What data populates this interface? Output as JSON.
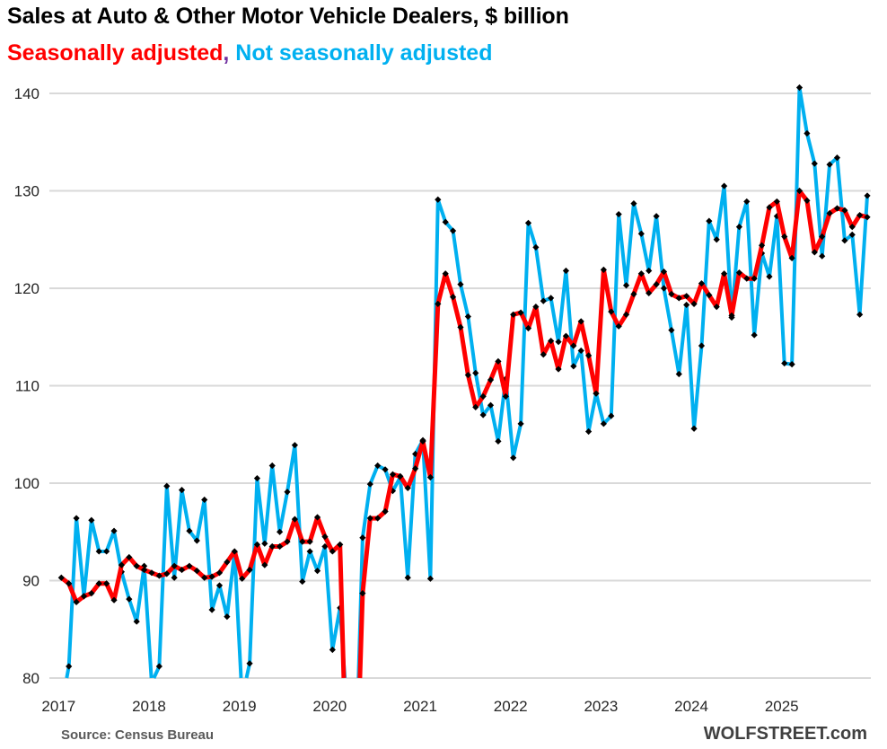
{
  "chart_data": {
    "type": "line",
    "title": "Sales at Auto & Other Motor Vehicle Dealers, $ billion",
    "subtitle_parts": [
      {
        "text": "Seasonally adjusted",
        "color": "#ff0000"
      },
      {
        "text": ",",
        "color": "#7030a0"
      },
      {
        "text": " Not seasonally adjusted",
        "color": "#00b0f0"
      }
    ],
    "xlabel": "",
    "ylabel": "",
    "ylim": [
      80,
      143
    ],
    "y_ticks": [
      80,
      90,
      100,
      110,
      120,
      130,
      140
    ],
    "x_tick_labels": [
      "2017",
      "2018",
      "2019",
      "2020",
      "2021",
      "2022",
      "2023",
      "2024",
      "2025"
    ],
    "grid": "horizontal",
    "markers": "black diamonds",
    "x": [
      "2017-01",
      "2017-02",
      "2017-03",
      "2017-04",
      "2017-05",
      "2017-06",
      "2017-07",
      "2017-08",
      "2017-09",
      "2017-10",
      "2017-11",
      "2017-12",
      "2018-01",
      "2018-02",
      "2018-03",
      "2018-04",
      "2018-05",
      "2018-06",
      "2018-07",
      "2018-08",
      "2018-09",
      "2018-10",
      "2018-11",
      "2018-12",
      "2019-01",
      "2019-02",
      "2019-03",
      "2019-04",
      "2019-05",
      "2019-06",
      "2019-07",
      "2019-08",
      "2019-09",
      "2019-10",
      "2019-11",
      "2019-12",
      "2020-01",
      "2020-02",
      "2020-03",
      "2020-04",
      "2020-05",
      "2020-06",
      "2020-07",
      "2020-08",
      "2020-09",
      "2020-10",
      "2020-11",
      "2020-12",
      "2021-01",
      "2021-02",
      "2021-03",
      "2021-04",
      "2021-05",
      "2021-06",
      "2021-07",
      "2021-08",
      "2021-09",
      "2021-10",
      "2021-11",
      "2021-12",
      "2022-01",
      "2022-02",
      "2022-03",
      "2022-04",
      "2022-05",
      "2022-06",
      "2022-07",
      "2022-08",
      "2022-09",
      "2022-10",
      "2022-11",
      "2022-12",
      "2023-01",
      "2023-02",
      "2023-03",
      "2023-04",
      "2023-05",
      "2023-06",
      "2023-07",
      "2023-08",
      "2023-09",
      "2023-10",
      "2023-11",
      "2023-12",
      "2024-01",
      "2024-02",
      "2024-03",
      "2024-04",
      "2024-05",
      "2024-06",
      "2024-07",
      "2024-08",
      "2024-09",
      "2024-10",
      "2024-11",
      "2024-12",
      "2025-01",
      "2025-02",
      "2025-03",
      "2025-04",
      "2025-05",
      "2025-06",
      "2025-07",
      "2025-08",
      "2025-09",
      "2025-10",
      "2025-11",
      "2025-12"
    ],
    "series": [
      {
        "name": "Not seasonally adjusted",
        "color": "#00b0f0",
        "values": [
          77.0,
          81.2,
          96.4,
          88.4,
          96.2,
          93.0,
          93.0,
          95.1,
          90.9,
          88.1,
          85.8,
          91.5,
          79.5,
          81.2,
          99.7,
          90.3,
          99.3,
          95.1,
          94.1,
          98.3,
          87.0,
          89.5,
          86.3,
          92.9,
          78.0,
          81.5,
          100.5,
          93.8,
          101.8,
          95.0,
          99.1,
          103.9,
          89.9,
          93.0,
          91.0,
          93.5,
          82.9,
          87.2,
          76.0,
          68.0,
          94.4,
          99.9,
          101.8,
          101.4,
          99.2,
          100.6,
          90.3,
          103.0,
          104.4,
          90.2,
          129.1,
          126.8,
          125.9,
          120.4,
          117.1,
          111.3,
          107.0,
          108.0,
          104.3,
          110.7,
          102.6,
          106.1,
          126.7,
          124.2,
          118.7,
          119.0,
          114.5,
          121.8,
          112.0,
          113.6,
          105.3,
          109.2,
          106.1,
          106.9,
          127.6,
          120.3,
          128.7,
          125.6,
          121.8,
          127.4,
          120.0,
          115.7,
          111.2,
          118.3,
          105.6,
          114.1,
          126.9,
          125.0,
          130.5,
          117.0,
          126.3,
          128.9,
          115.2,
          123.6,
          121.2,
          127.4,
          112.3,
          112.2,
          140.6,
          135.9,
          132.8,
          123.3,
          132.7,
          133.4,
          124.9,
          125.5,
          117.3,
          129.5
        ]
      },
      {
        "name": "Seasonally adjusted",
        "color": "#ff0000",
        "values": [
          90.3,
          89.7,
          87.8,
          88.4,
          88.7,
          89.7,
          89.7,
          88.0,
          91.6,
          92.4,
          91.5,
          91.1,
          90.8,
          90.5,
          90.7,
          91.5,
          91.1,
          91.5,
          91.0,
          90.3,
          90.4,
          90.8,
          91.9,
          93.0,
          90.2,
          91.1,
          93.7,
          91.6,
          93.5,
          93.5,
          94.0,
          96.3,
          94.0,
          94.0,
          96.5,
          94.5,
          93.0,
          93.7,
          66.0,
          64.0,
          88.7,
          96.4,
          96.4,
          97.1,
          100.9,
          100.7,
          99.5,
          101.5,
          104.3,
          100.6,
          118.4,
          121.5,
          119.1,
          116.0,
          111.1,
          107.8,
          108.9,
          110.6,
          112.5,
          108.9,
          117.3,
          117.5,
          115.9,
          118.1,
          113.2,
          114.6,
          111.7,
          115.1,
          114.1,
          116.6,
          113.1,
          109.2,
          121.9,
          117.6,
          116.1,
          117.3,
          119.4,
          121.5,
          119.5,
          120.4,
          121.7,
          119.4,
          119.0,
          119.2,
          118.4,
          120.5,
          119.3,
          118.1,
          121.5,
          117.2,
          121.6,
          121.0,
          121.0,
          124.4,
          128.3,
          128.9,
          125.3,
          123.1,
          130.0,
          129.0,
          123.7,
          125.3,
          127.7,
          128.2,
          128.0,
          126.3,
          127.5,
          127.3
        ]
      }
    ]
  },
  "footer": {
    "source": "Source: Census Bureau",
    "brand": "WOLFSTREET.com"
  }
}
